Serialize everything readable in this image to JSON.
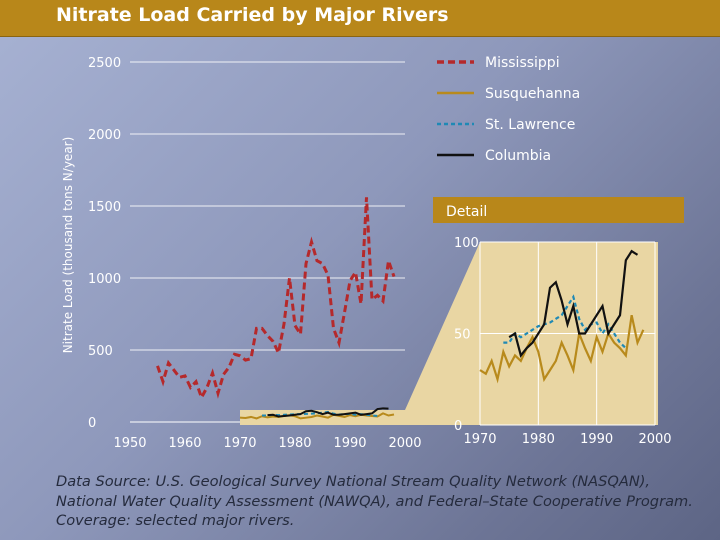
{
  "title": "Nitrate Load Carried by Major Rivers",
  "caption": "Data Source: U.S. Geological Survey National Stream Quality Network (NASQAN), National Water Quality Assessment (NAWQA), and Federal–State Cooperative Program. Coverage: selected major rivers.",
  "colors": {
    "mississippi": "#b5292b",
    "susquehanna": "#b88a1c",
    "stlawrence": "#1f89b5",
    "columbia": "#111111",
    "detail_band": "#b8871a",
    "detail_fill": "#e9d6a3"
  },
  "chart_data": [
    {
      "type": "line",
      "title": "Nitrate Load Carried by Major Rivers",
      "xlabel": "",
      "ylabel": "Nitrate Load (thousand tons N/year)",
      "xlim": [
        1950,
        2000
      ],
      "ylim": [
        0,
        2500
      ],
      "x_ticks": [
        "1950",
        "1960",
        "1970",
        "1980",
        "1990",
        "2000"
      ],
      "y_ticks": [
        "0",
        "500",
        "1000",
        "1500",
        "2000",
        "2500"
      ],
      "grid": true,
      "legend": "top-right",
      "series": [
        {
          "name": "Mississippi",
          "color": "#b5292b",
          "dash": "long",
          "x": [
            1955,
            1956,
            1957,
            1958,
            1959,
            1960,
            1961,
            1962,
            1963,
            1964,
            1965,
            1966,
            1967,
            1968,
            1969,
            1970,
            1971,
            1972,
            1973,
            1974,
            1975,
            1976,
            1977,
            1978,
            1979,
            1980,
            1981,
            1982,
            1983,
            1984,
            1985,
            1986,
            1987,
            1988,
            1989,
            1990,
            1991,
            1992,
            1993,
            1994,
            1995,
            1996,
            1997,
            1998
          ],
          "y": [
            390,
            280,
            410,
            360,
            310,
            320,
            240,
            280,
            170,
            240,
            340,
            200,
            330,
            380,
            470,
            460,
            430,
            440,
            650,
            650,
            600,
            560,
            480,
            680,
            1000,
            670,
            610,
            1100,
            1250,
            1120,
            1100,
            1020,
            650,
            550,
            760,
            980,
            1040,
            820,
            1560,
            850,
            880,
            840,
            1120,
            1010
          ]
        },
        {
          "name": "Susquehanna",
          "color": "#b88a1c",
          "dash": "solid",
          "x": [
            1970,
            1971,
            1972,
            1973,
            1974,
            1975,
            1976,
            1977,
            1978,
            1979,
            1980,
            1981,
            1982,
            1983,
            1984,
            1985,
            1986,
            1987,
            1988,
            1989,
            1990,
            1991,
            1992,
            1993,
            1994,
            1995,
            1996,
            1997,
            1998
          ],
          "y": [
            30,
            28,
            35,
            25,
            40,
            32,
            38,
            35,
            42,
            48,
            40,
            25,
            30,
            35,
            45,
            38,
            30,
            50,
            42,
            35,
            48,
            40,
            50,
            45,
            42,
            38,
            60,
            45,
            52
          ]
        },
        {
          "name": "St. Lawrence",
          "color": "#1f89b5",
          "dash": "short",
          "x": [
            1974,
            1975,
            1976,
            1977,
            1978,
            1979,
            1980,
            1981,
            1982,
            1983,
            1984,
            1985,
            1986,
            1987,
            1988,
            1989,
            1990,
            1991,
            1992,
            1993,
            1994,
            1995
          ],
          "y": [
            45,
            45,
            50,
            48,
            50,
            52,
            54,
            55,
            56,
            58,
            60,
            65,
            70,
            58,
            52,
            55,
            56,
            50,
            55,
            50,
            45,
            42
          ]
        },
        {
          "name": "Columbia",
          "color": "#111111",
          "dash": "solid",
          "x": [
            1975,
            1976,
            1977,
            1978,
            1979,
            1980,
            1981,
            1982,
            1983,
            1984,
            1985,
            1986,
            1987,
            1988,
            1989,
            1990,
            1991,
            1992,
            1993,
            1994,
            1995,
            1996,
            1997
          ],
          "y": [
            48,
            50,
            38,
            42,
            45,
            50,
            55,
            75,
            78,
            68,
            55,
            65,
            50,
            50,
            55,
            60,
            65,
            50,
            55,
            60,
            90,
            95,
            93
          ]
        }
      ]
    },
    {
      "type": "line",
      "title": "Detail",
      "xlim": [
        1970,
        2000
      ],
      "ylim": [
        0,
        100
      ],
      "x_ticks": [
        "1970",
        "1980",
        "1990",
        "2000"
      ],
      "y_ticks": [
        "0",
        "50",
        "100"
      ],
      "series_ref": [
        "Susquehanna",
        "St. Lawrence",
        "Columbia"
      ]
    }
  ]
}
